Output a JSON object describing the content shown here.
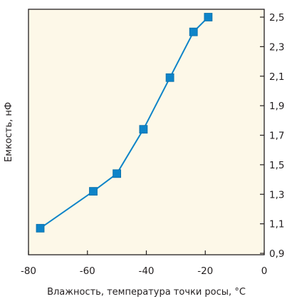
{
  "chart_data": {
    "type": "line",
    "title": "",
    "xlabel": "Влажность, температура точки росы, °C",
    "ylabel": "Емкость, нФ",
    "xlim": [
      -80,
      0
    ],
    "ylim": [
      0.9,
      2.55
    ],
    "x_ticks": [
      -80,
      -60,
      -40,
      -20,
      0
    ],
    "x_tick_labels": [
      "-80",
      "-60",
      "-40",
      "-20",
      "0"
    ],
    "y_ticks": [
      0.9,
      1.1,
      1.3,
      1.5,
      1.7,
      1.9,
      2.1,
      2.3,
      2.5
    ],
    "y_tick_labels": [
      "0,9",
      "1,1",
      "1,3",
      "1,5",
      "1,7",
      "1,9",
      "2,1",
      "2,3",
      "2,5"
    ],
    "y_axis_side": "right",
    "grid": false,
    "legend": "none",
    "series": [
      {
        "x": [
          -76,
          -58,
          -50,
          -41,
          -32,
          -24,
          -19
        ],
        "y": [
          1.07,
          1.32,
          1.44,
          1.74,
          2.09,
          2.4,
          2.5
        ],
        "marker": "square"
      }
    ],
    "colors": {
      "plot_background": "#fdf8e8",
      "line": "#0e84c8",
      "marker": "#0e84c8",
      "axis": "#231f20"
    }
  }
}
